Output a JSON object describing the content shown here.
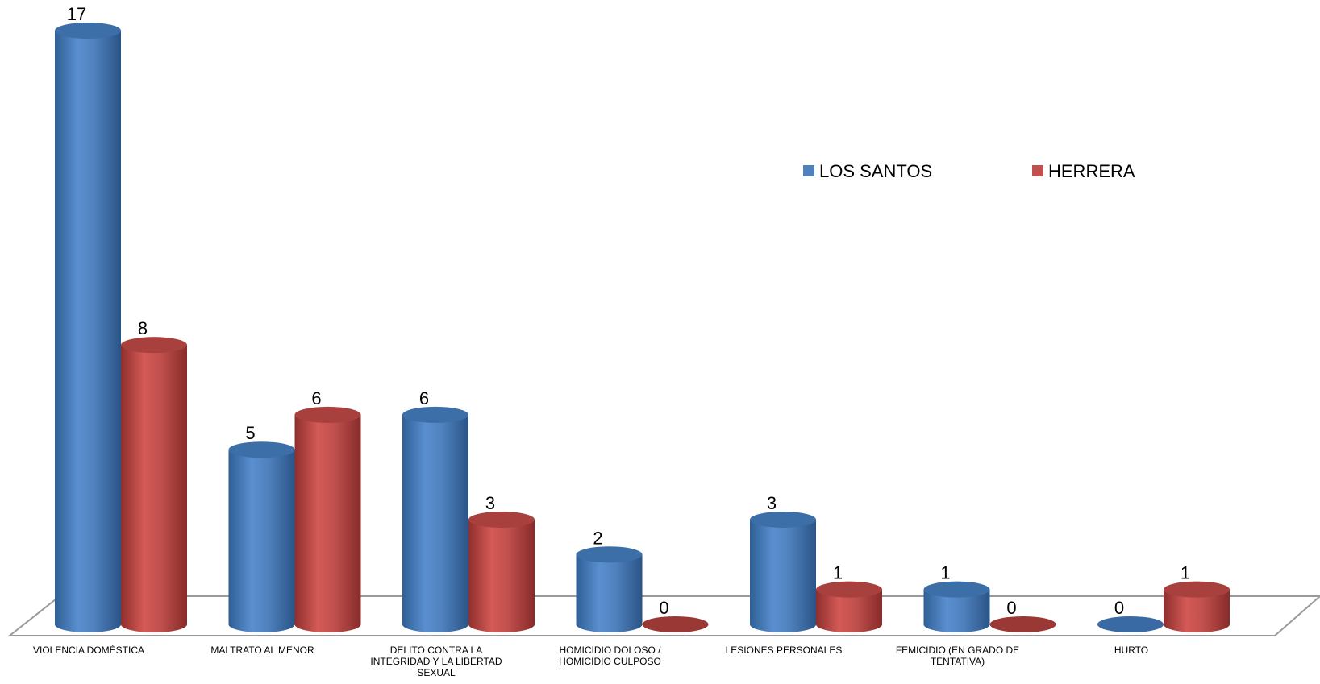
{
  "chart_data": {
    "type": "bar",
    "style": "3d-cylinder",
    "categories": [
      [
        "VIOLENCIA DOMÉSTICA"
      ],
      [
        "MALTRATO AL MENOR"
      ],
      [
        "DELITO CONTRA LA",
        "INTEGRIDAD Y LA LIBERTAD",
        "SEXUAL"
      ],
      [
        "HOMICIDIO DOLOSO /",
        "HOMICIDIO CULPOSO"
      ],
      [
        "LESIONES PERSONALES"
      ],
      [
        "FEMICIDIO (EN GRADO DE",
        "TENTATIVA)"
      ],
      [
        "HURTO"
      ]
    ],
    "series": [
      {
        "name": "LOS SANTOS",
        "color": "#4F81BD",
        "values": [
          17,
          5,
          6,
          2,
          3,
          1,
          0
        ]
      },
      {
        "name": "HERRERA",
        "color": "#C0504D",
        "values": [
          8,
          6,
          3,
          0,
          1,
          0,
          1
        ]
      }
    ],
    "ylim": [
      0,
      17
    ],
    "data_labels": true,
    "grid": false,
    "legend": "top-right"
  }
}
